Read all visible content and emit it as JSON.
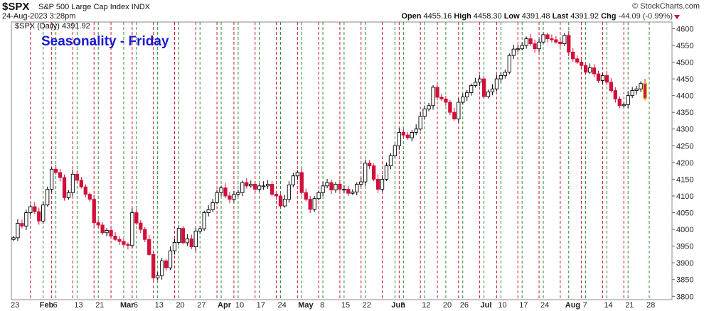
{
  "header": {
    "symbol": "$SPX",
    "name": "S&P 500 Large Cap Index",
    "exchange": "INDX",
    "date": "24-Aug-2023 3:28pm",
    "credit": "© StockCharts.com",
    "open_label": "Open",
    "open": "4455.16",
    "high_label": "High",
    "high": "4458.30",
    "low_label": "Low",
    "low": "4391.48",
    "last_label": "Last",
    "last": "4391.92",
    "chg_label": "Chg",
    "chg": "-44.09 (-0.99%)"
  },
  "colors": {
    "up": "#000000",
    "down": "#d0103a",
    "green_line": "#2a8a2a",
    "red_line": "#d0102a",
    "title": "#1a1ad0"
  },
  "chart_data": {
    "type": "candlestick",
    "title": "Seasonality - Friday",
    "legend": "$SPX (Daily) 4391.92",
    "ylim": [
      3790,
      4620
    ],
    "yticks": [
      3800,
      3850,
      3900,
      3950,
      4000,
      4050,
      4100,
      4150,
      4200,
      4250,
      4300,
      4350,
      4400,
      4450,
      4500,
      4550,
      4600
    ],
    "xticks": [
      {
        "label": "23",
        "i": 0
      },
      {
        "label": "Feb",
        "i": 7,
        "bold": true
      },
      {
        "label": "6",
        "i": 10
      },
      {
        "label": "13",
        "i": 15
      },
      {
        "label": "21",
        "i": 20
      },
      {
        "label": "Mar",
        "i": 26,
        "bold": true
      },
      {
        "label": "6",
        "i": 29
      },
      {
        "label": "13",
        "i": 34
      },
      {
        "label": "20",
        "i": 39
      },
      {
        "label": "27",
        "i": 44
      },
      {
        "label": "Apr",
        "i": 49,
        "bold": true
      },
      {
        "label": "10",
        "i": 53
      },
      {
        "label": "17",
        "i": 58
      },
      {
        "label": "24",
        "i": 63
      },
      {
        "label": "May",
        "i": 68,
        "bold": true
      },
      {
        "label": "8",
        "i": 73
      },
      {
        "label": "15",
        "i": 78
      },
      {
        "label": "22",
        "i": 83
      },
      {
        "label": "Jun",
        "i": 90,
        "bold": true
      },
      {
        "label": "5",
        "i": 92
      },
      {
        "label": "12",
        "i": 97
      },
      {
        "label": "20",
        "i": 102
      },
      {
        "label": "26",
        "i": 106
      },
      {
        "label": "Jul",
        "i": 111,
        "bold": true
      },
      {
        "label": "10",
        "i": 115
      },
      {
        "label": "17",
        "i": 120
      },
      {
        "label": "24",
        "i": 125
      },
      {
        "label": "Aug",
        "i": 131,
        "bold": true
      },
      {
        "label": "7",
        "i": 135
      },
      {
        "label": "14",
        "i": 140
      },
      {
        "label": "21",
        "i": 145
      },
      {
        "label": "28",
        "i": 150
      }
    ],
    "fridays": [
      4,
      9,
      14,
      19,
      23,
      28,
      33,
      38,
      43,
      48,
      52,
      57,
      62,
      67,
      72,
      77,
      82,
      87,
      91,
      96,
      100,
      105,
      110,
      114,
      119,
      124,
      129,
      134,
      139,
      144
    ],
    "closes": [
      3975,
      4018,
      4010,
      4050,
      4068,
      4053,
      4025,
      4073,
      4120,
      4180,
      4170,
      4155,
      4095,
      4110,
      4165,
      4147,
      4127,
      4105,
      4090,
      4020,
      4013,
      3990,
      3997,
      3980,
      3970,
      3964,
      3955,
      3952,
      4050,
      4019,
      4000,
      3970,
      3925,
      3855,
      3862,
      3906,
      3885,
      3936,
      3961,
      4003,
      3960,
      3972,
      3948,
      3995,
      4002,
      4050,
      4059,
      4080,
      4110,
      4124,
      4100,
      4090,
      4105,
      4110,
      4140,
      4130,
      4135,
      4120,
      4130,
      4130,
      4135,
      4105,
      4100,
      4070,
      4090,
      4133,
      4160,
      4170,
      4110,
      4090,
      4060,
      4092,
      4110,
      4130,
      4140,
      4118,
      4135,
      4120,
      4120,
      4108,
      4112,
      4135,
      4142,
      4198,
      4190,
      4150,
      4120,
      4150,
      4190,
      4220,
      4250,
      4290,
      4282,
      4274,
      4290,
      4300,
      4338,
      4360,
      4370,
      4425,
      4395,
      4390,
      4380,
      4350,
      4330,
      4380,
      4396,
      4409,
      4430,
      4440,
      4450,
      4397,
      4411,
      4420,
      4450,
      4460,
      4470,
      4520,
      4539,
      4540,
      4550,
      4570,
      4555,
      4540,
      4560,
      4582,
      4570,
      4567,
      4560,
      4555,
      4580,
      4530,
      4510,
      4500,
      4490,
      4470,
      4483,
      4465,
      4445,
      4460,
      4440,
      4415,
      4390,
      4370,
      4373,
      4400,
      4415,
      4420,
      4436,
      4392
    ],
    "high": 4607,
    "low": 3808
  }
}
